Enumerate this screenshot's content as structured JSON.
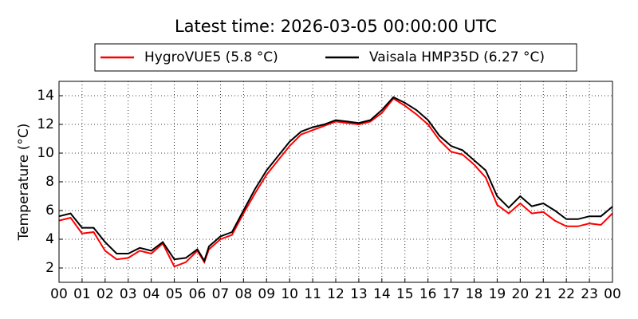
{
  "chart_data": {
    "type": "line",
    "title": "Latest time: 2026-03-05 00:00:00 UTC",
    "ylabel": "Temperature (°C)",
    "x": [
      0,
      0.5,
      1,
      1.5,
      2,
      2.5,
      3,
      3.5,
      4,
      4.5,
      5,
      5.5,
      6,
      6.3,
      6.5,
      7,
      7.5,
      8,
      8.5,
      9,
      9.5,
      10,
      10.5,
      11,
      11.5,
      12,
      12.5,
      13,
      13.5,
      14,
      14.5,
      15,
      15.5,
      16,
      16.5,
      17,
      17.5,
      18,
      18.5,
      19,
      19.5,
      20,
      20.5,
      21,
      21.5,
      22,
      22.5,
      23,
      23.5,
      24
    ],
    "series": [
      {
        "name": "HygroVUE5 (5.8 °C)",
        "color": "#ff0000",
        "values": [
          5.3,
          5.5,
          4.4,
          4.5,
          3.2,
          2.6,
          2.7,
          3.2,
          3.0,
          3.7,
          2.1,
          2.4,
          3.2,
          2.4,
          3.3,
          4.0,
          4.3,
          5.8,
          7.2,
          8.5,
          9.5,
          10.5,
          11.3,
          11.6,
          11.9,
          12.2,
          12.1,
          12.0,
          12.2,
          12.8,
          13.8,
          13.3,
          12.7,
          12.0,
          10.9,
          10.1,
          9.9,
          9.2,
          8.3,
          6.4,
          5.8,
          6.5,
          5.8,
          5.9,
          5.3,
          4.9,
          4.9,
          5.1,
          5.0,
          5.8
        ]
      },
      {
        "name": "Vaisala HMP35D (6.27 °C)",
        "color": "#000000",
        "values": [
          5.6,
          5.8,
          4.8,
          4.8,
          3.8,
          3.0,
          3.0,
          3.4,
          3.2,
          3.8,
          2.6,
          2.7,
          3.3,
          2.5,
          3.5,
          4.2,
          4.5,
          6.0,
          7.5,
          8.8,
          9.8,
          10.8,
          11.5,
          11.8,
          12.0,
          12.3,
          12.2,
          12.1,
          12.3,
          13.0,
          13.9,
          13.5,
          13.0,
          12.3,
          11.2,
          10.5,
          10.2,
          9.5,
          8.8,
          7.0,
          6.2,
          7.0,
          6.3,
          6.5,
          6.0,
          5.4,
          5.4,
          5.6,
          5.6,
          6.27
        ]
      }
    ],
    "xlim": [
      0,
      24
    ],
    "xticks": [
      {
        "value": 0,
        "label": "00"
      },
      {
        "value": 1,
        "label": "01"
      },
      {
        "value": 2,
        "label": "02"
      },
      {
        "value": 3,
        "label": "03"
      },
      {
        "value": 4,
        "label": "04"
      },
      {
        "value": 5,
        "label": "05"
      },
      {
        "value": 6,
        "label": "06"
      },
      {
        "value": 7,
        "label": "07"
      },
      {
        "value": 8,
        "label": "08"
      },
      {
        "value": 9,
        "label": "09"
      },
      {
        "value": 10,
        "label": "10"
      },
      {
        "value": 11,
        "label": "11"
      },
      {
        "value": 12,
        "label": "12"
      },
      {
        "value": 13,
        "label": "13"
      },
      {
        "value": 14,
        "label": "14"
      },
      {
        "value": 15,
        "label": "15"
      },
      {
        "value": 16,
        "label": "16"
      },
      {
        "value": 17,
        "label": "17"
      },
      {
        "value": 18,
        "label": "18"
      },
      {
        "value": 19,
        "label": "19"
      },
      {
        "value": 20,
        "label": "20"
      },
      {
        "value": 21,
        "label": "21"
      },
      {
        "value": 22,
        "label": "22"
      },
      {
        "value": 23,
        "label": "23"
      },
      {
        "value": 24,
        "label": "00"
      }
    ],
    "ylim": [
      1,
      15
    ],
    "yticks": [
      2,
      4,
      6,
      8,
      10,
      12,
      14
    ],
    "grid": true,
    "legend": "top"
  }
}
